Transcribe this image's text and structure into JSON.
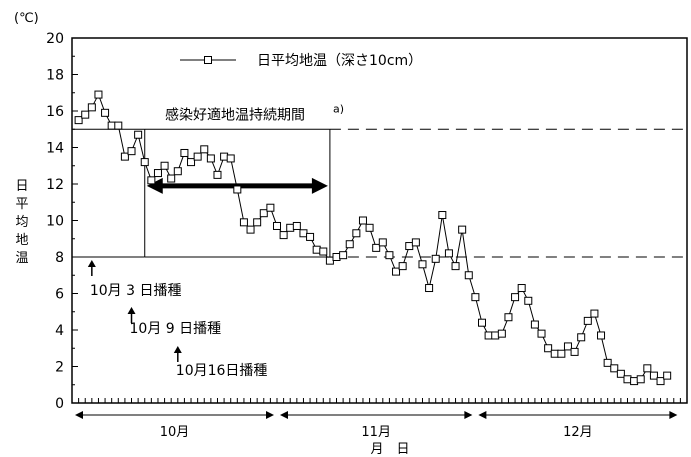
{
  "chart_data": {
    "type": "line",
    "unit_label": "(℃)",
    "ylabel": "日平均地温",
    "xlabel": "月　日",
    "ylim": [
      0,
      20
    ],
    "y_ticks": [
      "0",
      "2",
      "4",
      "6",
      "8",
      "10",
      "12",
      "14",
      "16",
      "18",
      "20"
    ],
    "grid": false,
    "legend_position": "top-center",
    "series": [
      {
        "name": "日平均地温（深さ10cm）",
        "marker": "square",
        "color": "#000000",
        "x_start_date": "10月1日",
        "values": [
          15.5,
          15.8,
          16.2,
          16.9,
          15.9,
          15.2,
          15.2,
          13.5,
          13.8,
          14.7,
          13.2,
          12.2,
          12.6,
          13.0,
          12.3,
          12.7,
          13.7,
          13.2,
          13.5,
          13.9,
          13.4,
          12.5,
          13.5,
          13.4,
          11.7,
          9.9,
          9.5,
          9.9,
          10.4,
          10.7,
          9.7,
          9.2,
          9.6,
          9.7,
          9.3,
          9.1,
          8.4,
          8.3,
          7.8,
          8.0,
          8.1,
          8.7,
          9.3,
          10.0,
          9.6,
          8.5,
          8.8,
          8.1,
          7.2,
          7.5,
          8.6,
          8.8,
          7.6,
          6.3,
          7.9,
          10.3,
          8.2,
          7.5,
          9.5,
          7.0,
          5.8,
          4.4,
          3.7,
          3.7,
          3.8,
          4.7,
          5.8,
          6.3,
          5.6,
          4.3,
          3.8,
          3.0,
          2.7,
          2.7,
          3.1,
          2.8,
          3.6,
          4.5,
          4.9,
          3.7,
          2.2,
          1.9,
          1.6,
          1.3,
          1.2,
          1.3,
          1.9,
          1.5,
          1.2,
          1.5
        ]
      }
    ],
    "reference_lines": [
      15,
      8
    ],
    "optimal_period": {
      "label": "感染好適地温持続期間",
      "superscript": "a)",
      "start_day": 11,
      "end_day": 39
    },
    "sowing_annotations": [
      {
        "label": "10月 3 日播種",
        "day": 3
      },
      {
        "label": "10月 9 日播種",
        "day": 9
      },
      {
        "label": "10月16日播種",
        "day": 16
      }
    ],
    "months": [
      {
        "label": "10月",
        "start_day": 0,
        "end_day": 31
      },
      {
        "label": "11月",
        "start_day": 31,
        "end_day": 61
      },
      {
        "label": "12月",
        "start_day": 61,
        "end_day": 92
      }
    ],
    "x_axis_days": 93
  }
}
